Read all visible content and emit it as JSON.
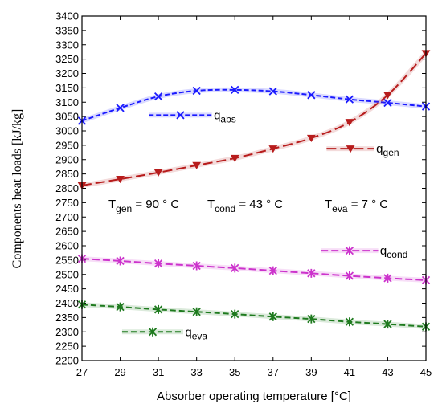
{
  "chart_data": {
    "type": "line",
    "xlabel": "Absorber operating temperature [°C]",
    "ylabel": "Components heat loads [kJ/kg]",
    "xlim": [
      27,
      45
    ],
    "ylim": [
      2200,
      3400
    ],
    "xticks": [
      27,
      29,
      31,
      33,
      35,
      37,
      39,
      41,
      43,
      45
    ],
    "yticks": [
      2200,
      2250,
      2300,
      2350,
      2400,
      2450,
      2500,
      2550,
      2600,
      2650,
      2700,
      2750,
      2800,
      2850,
      2900,
      2950,
      3000,
      3050,
      3100,
      3150,
      3200,
      3250,
      3300,
      3350,
      3400
    ],
    "grid": false,
    "series": [
      {
        "name": "q",
        "sub": "abs",
        "color": "#1a1aff",
        "marker": "x",
        "dash": "6,3",
        "x": [
          27,
          29,
          31,
          33,
          35,
          37,
          39,
          41,
          43,
          45
        ],
        "y": [
          3035,
          3080,
          3120,
          3140,
          3143,
          3138,
          3125,
          3110,
          3098,
          3085
        ]
      },
      {
        "name": "q",
        "sub": "gen",
        "color": "#b71c1c",
        "marker": "triangle-down",
        "dash": "12,5",
        "x": [
          27,
          29,
          31,
          33,
          35,
          37,
          39,
          41,
          43,
          45
        ],
        "y": [
          2810,
          2832,
          2855,
          2880,
          2905,
          2938,
          2975,
          3030,
          3125,
          3270
        ]
      },
      {
        "name": "q",
        "sub": "cond",
        "color": "#cc33cc",
        "marker": "asterisk",
        "dash": "9,4",
        "x": [
          27,
          29,
          31,
          33,
          35,
          37,
          39,
          41,
          43,
          45
        ],
        "y": [
          2555,
          2547,
          2538,
          2530,
          2522,
          2513,
          2504,
          2495,
          2487,
          2480
        ]
      },
      {
        "name": "q",
        "sub": "eva",
        "color": "#1e7a1e",
        "marker": "asterisk",
        "dash": "7,4",
        "x": [
          27,
          29,
          31,
          33,
          35,
          37,
          39,
          41,
          43,
          45
        ],
        "y": [
          2395,
          2387,
          2378,
          2370,
          2362,
          2353,
          2345,
          2335,
          2327,
          2318
        ]
      }
    ],
    "annotations": [
      {
        "main": "T",
        "sub": "gen",
        "rest": " = 90 ° C"
      },
      {
        "main": "T",
        "sub": "cond",
        "rest": " =  43 ° C"
      },
      {
        "main": "T",
        "sub": "eva",
        "rest": " = 7 ° C"
      }
    ]
  }
}
